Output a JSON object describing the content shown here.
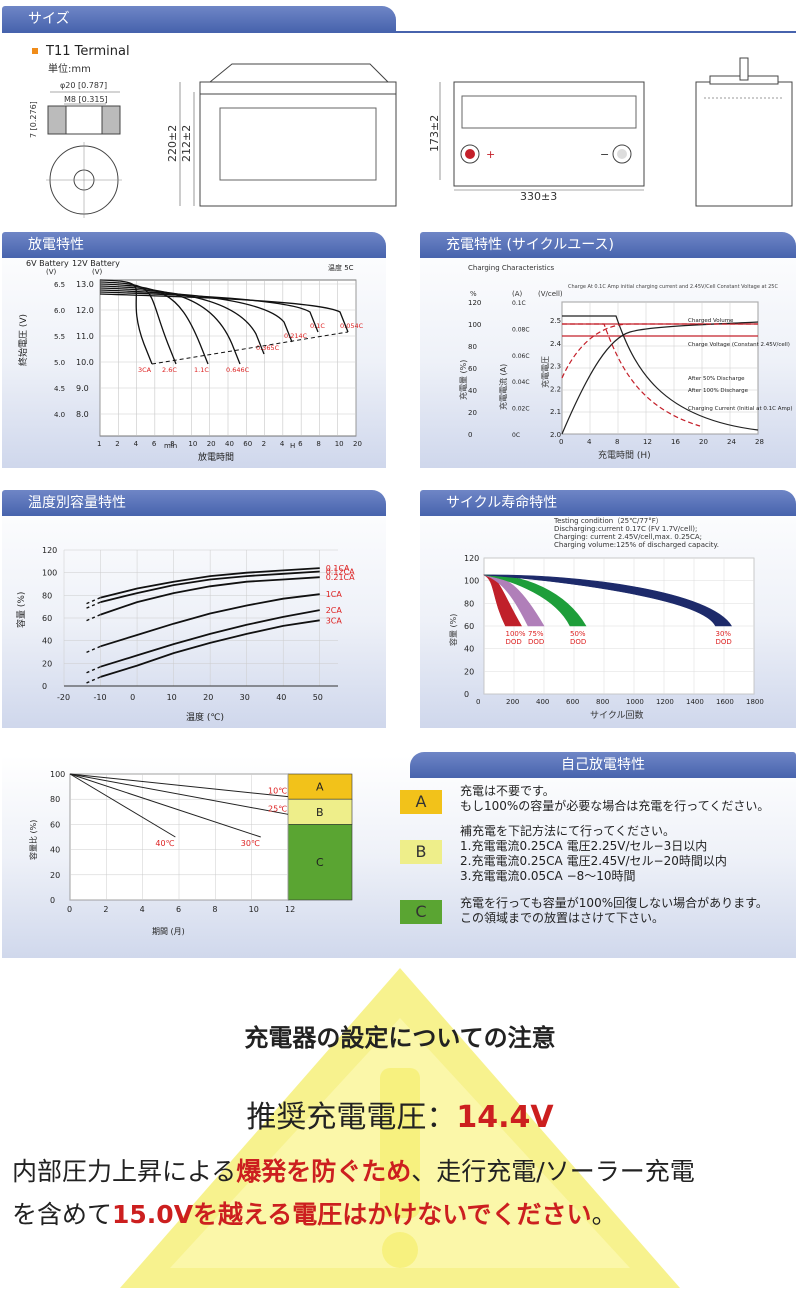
{
  "sections": {
    "size": "サイズ",
    "discharge": "放電特性",
    "charge": "充電特性 (サイクルユース)",
    "temp": "温度別容量特性",
    "cycle": "サイクル寿命特性",
    "selfdis": "自己放電特性"
  },
  "dimensions": {
    "terminal_title": "T11 Terminal",
    "unit": "単位:mm",
    "phi": "φ20 [0.787]",
    "m8": "M8 [0.315]",
    "t7": "7 [0.276]",
    "h220": "220±2",
    "h212": "212±2",
    "h173": "173±2",
    "w330": "330±3",
    "plus": "+",
    "minus": "−"
  },
  "chart_data": [
    {
      "id": "discharge",
      "type": "line",
      "label_6v": "6V Battery",
      "label_12v": "12V Battery",
      "unit_6v": "(V)",
      "unit_12v": "(V)",
      "temp_label": "温度 5C",
      "ylabel": "終始電圧 (V)",
      "xlabel": "放電時間",
      "x_unit_min": "min",
      "x_unit_h": "H",
      "y6_ticks": [
        "6.5",
        "6.0",
        "5.5",
        "5.0",
        "4.5",
        "4.0"
      ],
      "y12_ticks": [
        "13.0",
        "12.0",
        "11.0",
        "10.0",
        "9.0",
        "8.0"
      ],
      "x_ticks": [
        "1",
        "2",
        "4",
        "6",
        "8",
        "10",
        "20",
        "40",
        "60",
        "2",
        "4",
        "6",
        "8",
        "10",
        "20"
      ],
      "series": [
        {
          "name": "3CA",
          "curve": 0
        },
        {
          "name": "2.6C",
          "curve": 1
        },
        {
          "name": "1.1C",
          "curve": 2
        },
        {
          "name": "0.646C",
          "curve": 3
        },
        {
          "name": "0.365C",
          "curve": 4
        },
        {
          "name": "0.214C",
          "curve": 5
        },
        {
          "name": "0.1C",
          "curve": 6
        },
        {
          "name": "0.054C",
          "curve": 7
        }
      ]
    },
    {
      "id": "charge",
      "type": "line",
      "title": "Charging Characteristics",
      "note": "Charge At 0.1C Amp initial charging current and 2.45V/Cell Constant Voltage at 25C",
      "y1_unit": "%",
      "y2_unit": "(A)",
      "y3_unit": "(V/cell)",
      "y1_label": "充電量 (%)",
      "y2_label": "充電電流 (A)",
      "y3_label": "充電電圧",
      "y1_ticks": [
        "120",
        "100",
        "80",
        "60",
        "40",
        "20",
        "0"
      ],
      "y2_ticks": [
        "0.1C",
        "0.08C",
        "0.06C",
        "0.04C",
        "0.02C",
        "0C"
      ],
      "y3_ticks": [
        "2.5",
        "2.4",
        "2.3",
        "2.2",
        "2.1",
        "2.0"
      ],
      "x_ticks": [
        "0",
        "4",
        "8",
        "12",
        "16",
        "20",
        "24",
        "28"
      ],
      "xlabel": "充電時間 (H)",
      "legend": [
        "Charged Volume",
        "Charge Voltage (Constant 2.45V/cell)",
        "After 50% Discharge",
        "After 100% Discharge",
        "Charging Current (Initial at 0.1C Amp)"
      ]
    },
    {
      "id": "temperature",
      "type": "line",
      "xlabel": "温度 (℃)",
      "ylabel": "容量 (%)",
      "x_ticks": [
        "-20",
        "-10",
        "0",
        "10",
        "20",
        "30",
        "40",
        "50"
      ],
      "y_ticks": [
        "0",
        "20",
        "40",
        "60",
        "80",
        "100",
        "120"
      ],
      "xlim": [
        -20,
        55
      ],
      "ylim": [
        0,
        120
      ],
      "series": [
        {
          "name": "0.1CA",
          "points": [
            [
              -10,
              78
            ],
            [
              0,
              86
            ],
            [
              10,
              92
            ],
            [
              20,
              97
            ],
            [
              30,
              100
            ],
            [
              40,
              102
            ],
            [
              50,
              104
            ]
          ]
        },
        {
          "name": "0.12CA",
          "points": [
            [
              -10,
              74
            ],
            [
              0,
              82
            ],
            [
              10,
              89
            ],
            [
              20,
              94
            ],
            [
              30,
              97
            ],
            [
              40,
              99
            ],
            [
              50,
              101
            ]
          ]
        },
        {
          "name": "0.21CA",
          "points": [
            [
              -10,
              63
            ],
            [
              0,
              74
            ],
            [
              10,
              82
            ],
            [
              20,
              88
            ],
            [
              30,
              92
            ],
            [
              40,
              94
            ],
            [
              50,
              96
            ]
          ]
        },
        {
          "name": "1CA",
          "points": [
            [
              -10,
              35
            ],
            [
              0,
              45
            ],
            [
              10,
              55
            ],
            [
              20,
              64
            ],
            [
              30,
              71
            ],
            [
              40,
              77
            ],
            [
              50,
              81
            ]
          ]
        },
        {
          "name": "2CA",
          "points": [
            [
              -10,
              17
            ],
            [
              0,
              27
            ],
            [
              10,
              37
            ],
            [
              20,
              46
            ],
            [
              30,
              54
            ],
            [
              40,
              61
            ],
            [
              50,
              67
            ]
          ]
        },
        {
          "name": "3CA",
          "points": [
            [
              -10,
              8
            ],
            [
              0,
              18
            ],
            [
              10,
              29
            ],
            [
              20,
              38
            ],
            [
              30,
              46
            ],
            [
              40,
              53
            ],
            [
              50,
              58
            ]
          ]
        }
      ]
    },
    {
      "id": "cycle",
      "type": "area",
      "conditions": [
        "Testing condition（25℃/77°F）",
        "Discharging:current 0.17C (FV 1.7V/cell);",
        "Charging: current 2.45V/cell,max. 0.25CA;",
        "Charging volume:125% of discharged capacity."
      ],
      "xlabel": "サイクル回数",
      "ylabel": "容量 (%)",
      "x_ticks": [
        "0",
        "200",
        "400",
        "600",
        "800",
        "1000",
        "1200",
        "1400",
        "1600",
        "1800"
      ],
      "y_ticks": [
        "0",
        "20",
        "40",
        "60",
        "80",
        "100",
        "120"
      ],
      "series": [
        {
          "name": "100% DOD",
          "end_cycle": 250,
          "color": "#c0202a"
        },
        {
          "name": "75% DOD",
          "end_cycle": 400,
          "color": "#b07fb9"
        },
        {
          "name": "50% DOD",
          "end_cycle": 680,
          "color": "#1e9e3a"
        },
        {
          "name": "30% DOD",
          "end_cycle": 1650,
          "color": "#1d2a6a"
        }
      ]
    },
    {
      "id": "selfdischarge",
      "type": "line",
      "xlabel": "期間 (月)",
      "ylabel": "容量比 (%)",
      "x_ticks": [
        "0",
        "2",
        "4",
        "6",
        "8",
        "10",
        "12"
      ],
      "y_ticks": [
        "0",
        "20",
        "40",
        "60",
        "80",
        "100"
      ],
      "series": [
        {
          "name": "10℃",
          "points": [
            [
              0,
              100
            ],
            [
              12,
              82
            ]
          ]
        },
        {
          "name": "25℃",
          "points": [
            [
              0,
              100
            ],
            [
              12,
              68
            ]
          ]
        },
        {
          "name": "30℃",
          "points": [
            [
              0,
              100
            ],
            [
              10.5,
              50
            ]
          ]
        },
        {
          "name": "40℃",
          "points": [
            [
              0,
              100
            ],
            [
              5.8,
              50
            ]
          ]
        }
      ],
      "zones": [
        {
          "label": "A",
          "from": 80,
          "to": 100,
          "color": "#f2c21a"
        },
        {
          "label": "B",
          "from": 60,
          "to": 80,
          "color": "#eeee8a"
        },
        {
          "label": "C",
          "from": 0,
          "to": 60,
          "color": "#5aa532"
        }
      ]
    }
  ],
  "selfdis_text": {
    "a_label": "A",
    "a1": "充電は不要です。",
    "a2": "もし100%の容量が必要な場合は充電を行ってください。",
    "b_label": "B",
    "b1": "補充電を下記方法にて行ってください。",
    "b2": "1.充電電流0.25CA 電圧2.25V/セル−3日以内",
    "b3": "2.充電電流0.25CA 電圧2.45V/セル−20時間以内",
    "b4": "3.充電電流0.05CA −8〜10時間",
    "c_label": "C",
    "c1": "充電を行っても容量が100%回復しない場合があります。",
    "c2": "この領域までの放置はさけて下さい。",
    "color_a": "#f2c21a",
    "color_b": "#eeee8a",
    "color_c": "#5aa532"
  },
  "caution": {
    "title": "充電器の設定についての注意",
    "volt_label": "推奨充電電圧：",
    "volt_value": "14.4V",
    "l1a": "内部圧力上昇による",
    "l1b": "爆発を防ぐため",
    "l1c": "、走行充電/ソーラー充電",
    "l2a": "を含めて",
    "l2b": "15.0Vを越える電圧はかけないでください",
    "l2c": "。",
    "icon": "warning-triangle-icon"
  }
}
